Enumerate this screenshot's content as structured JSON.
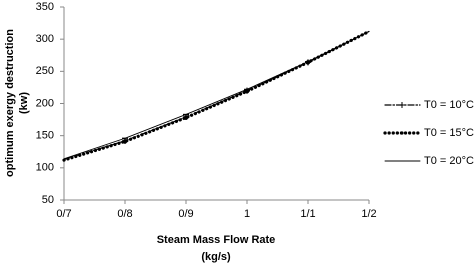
{
  "chart_data": {
    "type": "line",
    "ylabel_lines": [
      "optimum exergy destruction",
      "(kw)"
    ],
    "xlabel_lines": [
      "Steam Mass Flow Rate",
      "(kg/s)"
    ],
    "x": [
      0.7,
      0.8,
      0.9,
      1,
      1.1,
      1.2
    ],
    "series": [
      {
        "name": "T0 = 10°C",
        "color": "#000000",
        "linestyle": "dashdot",
        "marker": "plus",
        "values": [
          113,
          142,
          179,
          220,
          264,
          312
        ]
      },
      {
        "name": "T0 = 15°C",
        "color": "#000000",
        "linestyle": "dotted",
        "marker": "dot",
        "values": [
          112,
          141,
          178,
          219,
          264,
          312
        ]
      },
      {
        "name": "T0 = 20°C",
        "color": "#000000",
        "linestyle": "solid",
        "marker": "dash",
        "values": [
          114,
          146,
          183,
          222,
          265,
          312
        ]
      }
    ],
    "xlim": [
      0.7,
      1.2
    ],
    "xticks": [
      {
        "value": 0.7,
        "label": "0/7"
      },
      {
        "value": 0.8,
        "label": "0/8"
      },
      {
        "value": 0.9,
        "label": "0/9"
      },
      1,
      {
        "value": 1.1,
        "label": "1/1"
      },
      {
        "value": 1.2,
        "label": "1/2"
      }
    ],
    "ylim": [
      50,
      350
    ],
    "yticks": [
      50,
      100,
      150,
      200,
      250,
      300,
      350
    ],
    "grid": false,
    "legend": "right"
  }
}
